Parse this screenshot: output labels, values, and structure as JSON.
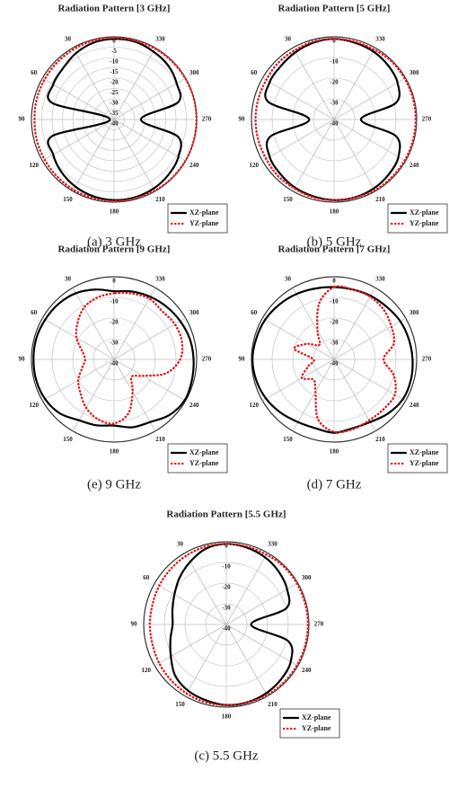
{
  "chart_data": [
    {
      "type": "polar",
      "title": "Radiation  Pattern [3 GHz]",
      "caption": "(a)  3  GHz",
      "theta": [
        0,
        15,
        30,
        45,
        60,
        75,
        90,
        105,
        120,
        135,
        150,
        165,
        180,
        195,
        210,
        225,
        240,
        255,
        270,
        285,
        300,
        315,
        330,
        345
      ],
      "rlim": [
        -40,
        0
      ],
      "rticks": [
        0,
        -5,
        -10,
        -15,
        -20,
        -25,
        -30,
        -35,
        -40
      ],
      "angle_ticks": [
        30,
        60,
        90,
        120,
        150,
        180,
        210,
        240,
        270,
        300,
        330
      ],
      "legend": "lower right",
      "series": [
        {
          "name": "XZ-plane",
          "color": "#000000",
          "style": "solid",
          "values": [
            -1,
            -1.5,
            -3,
            -5,
            -6,
            -9,
            -38,
            -9,
            -6,
            -4,
            -2.5,
            -1.5,
            -1,
            -1,
            -1.5,
            -2.5,
            -4,
            -8,
            -27,
            -8,
            -5,
            -3,
            -2,
            -1
          ]
        },
        {
          "name": "YZ-plane",
          "color": "#e31a1c",
          "style": "dotted",
          "values": [
            -0.5,
            -0.5,
            -0.8,
            -1,
            -1.2,
            -1.3,
            -1.5,
            -1.3,
            -1.2,
            -1,
            -0.8,
            -0.6,
            -0.5,
            -0.5,
            -0.3,
            -0.2,
            -0.1,
            -0.1,
            -0.1,
            -0.1,
            -0.2,
            -0.3,
            -0.4,
            -0.5
          ]
        }
      ]
    },
    {
      "type": "polar",
      "title": "Radiation  Pattern [5 GHz]",
      "caption": "(b)  5  GHz",
      "theta": [
        0,
        15,
        30,
        45,
        60,
        75,
        90,
        105,
        120,
        135,
        150,
        165,
        180,
        195,
        210,
        225,
        240,
        255,
        270,
        285,
        300,
        315,
        330,
        345
      ],
      "rlim": [
        -40,
        0
      ],
      "rticks": [
        0,
        -10,
        -20,
        -30,
        -40
      ],
      "angle_ticks": [
        30,
        60,
        90,
        120,
        150,
        180,
        210,
        240,
        270,
        300,
        330
      ],
      "legend": "lower right",
      "series": [
        {
          "name": "XZ-plane",
          "color": "#000000",
          "style": "solid",
          "values": [
            -1,
            -1.5,
            -2.5,
            -3.5,
            -4,
            -7,
            -28,
            -8,
            -4,
            -3,
            -2,
            -1.5,
            -1,
            -1,
            -1.5,
            -2.5,
            -4,
            -9,
            -27,
            -9,
            -4.5,
            -3,
            -2,
            -1.5
          ]
        },
        {
          "name": "YZ-plane",
          "color": "#e31a1c",
          "style": "dotted",
          "values": [
            -1,
            -1,
            -1.5,
            -1.5,
            -2,
            -2,
            -2,
            -2,
            -2,
            -1.5,
            -1.5,
            -1,
            -1,
            -1,
            -0.5,
            -0.5,
            -0.5,
            -0.5,
            -0.5,
            -0.5,
            -0.5,
            -0.5,
            -1,
            -1
          ]
        }
      ]
    },
    {
      "type": "polar",
      "title": "Radiation  Pattern [9 GHz]",
      "caption": "(e)  9  GHz",
      "theta": [
        0,
        15,
        30,
        45,
        60,
        75,
        90,
        105,
        120,
        135,
        150,
        165,
        180,
        195,
        210,
        225,
        240,
        255,
        270,
        285,
        300,
        315,
        330,
        345
      ],
      "rlim": [
        -40,
        0
      ],
      "rticks": [
        0,
        -10,
        -20,
        -30,
        -40
      ],
      "angle_ticks": [
        30,
        60,
        90,
        120,
        150,
        180,
        210,
        240,
        270,
        300,
        330
      ],
      "legend": "lower right",
      "series": [
        {
          "name": "XZ-plane",
          "color": "#000000",
          "style": "solid",
          "values": [
            -7,
            -5,
            -3,
            -2,
            -1.5,
            -1,
            -1,
            -1,
            -1.5,
            -3,
            -6,
            -7,
            -8,
            -6,
            -5,
            -2,
            -0.5,
            -1,
            -1.5,
            -2,
            -3,
            -4,
            -5,
            -6
          ]
        },
        {
          "name": "YZ-plane",
          "color": "#e31a1c",
          "style": "dotted",
          "values": [
            -8,
            -9,
            -11,
            -15,
            -19,
            -24,
            -26,
            -24,
            -20,
            -17,
            -13,
            -10,
            -9,
            -13,
            -22,
            -28,
            -24,
            -14,
            -8,
            -6,
            -6,
            -7,
            -6,
            -7
          ]
        }
      ]
    },
    {
      "type": "polar",
      "title": "Radiation  Pattern [7 GHz]",
      "caption": "(d)  7  GHz",
      "theta": [
        0,
        15,
        30,
        45,
        60,
        75,
        90,
        105,
        120,
        135,
        150,
        165,
        180,
        195,
        210,
        225,
        240,
        255,
        270,
        285,
        300,
        315,
        330,
        345
      ],
      "rlim": [
        -40,
        0
      ],
      "rticks": [
        0,
        -10,
        -20,
        -30,
        -40
      ],
      "angle_ticks": [
        30,
        60,
        90,
        120,
        150,
        180,
        210,
        240,
        270,
        300,
        330
      ],
      "legend": "lower right",
      "series": [
        {
          "name": "XZ-plane",
          "color": "#000000",
          "style": "solid",
          "values": [
            -5,
            -4.5,
            -3.5,
            -2.5,
            -1.5,
            -1,
            -0.5,
            -1,
            -2,
            -3.5,
            -5,
            -5.5,
            -4.5,
            -5.5,
            -5,
            -3,
            -1.5,
            -1.5,
            -2,
            -2.5,
            -3,
            -4,
            -4.5,
            -5
          ]
        },
        {
          "name": "YZ-plane",
          "color": "#e31a1c",
          "style": "dotted",
          "values": [
            -5,
            -12,
            -24,
            -30,
            -25,
            -20,
            -30,
            -27,
            -22,
            -26,
            -22,
            -10,
            -5,
            -5,
            -6,
            -6,
            -6,
            -10,
            -16,
            -10,
            -8,
            -6,
            -5,
            -5
          ]
        }
      ]
    },
    {
      "type": "polar",
      "title": "Radiation  Pattern [5.5 GHz]",
      "caption": "(c)  5.5  GHz",
      "theta": [
        0,
        15,
        30,
        45,
        60,
        75,
        90,
        105,
        120,
        135,
        150,
        165,
        180,
        195,
        210,
        225,
        240,
        255,
        270,
        285,
        300,
        315,
        330,
        345
      ],
      "rlim": [
        -40,
        0
      ],
      "rticks": [
        0,
        -10,
        -20,
        -30,
        -40
      ],
      "angle_ticks": [
        30,
        60,
        90,
        120,
        150,
        180,
        210,
        240,
        270,
        300,
        330
      ],
      "legend": "lower right",
      "series": [
        {
          "name": "XZ-plane",
          "color": "#000000",
          "style": "solid",
          "values": [
            -1,
            -2,
            -5,
            -8,
            -11,
            -13,
            -14,
            -12,
            -9,
            -5,
            -3,
            -2,
            -1,
            -1,
            -1.5,
            -2.5,
            -4,
            -9,
            -28,
            -10,
            -6,
            -4,
            -2.5,
            -1.5
          ]
        },
        {
          "name": "YZ-plane",
          "color": "#e31a1c",
          "style": "dotted",
          "values": [
            -1,
            -1,
            -1.5,
            -2,
            -2.5,
            -3,
            -3,
            -3,
            -2.5,
            -2,
            -1.5,
            -1,
            -1,
            -1,
            -0.5,
            -0.5,
            -0.5,
            -0.5,
            -0.5,
            -0.5,
            -0.5,
            -0.5,
            -1,
            -1
          ]
        }
      ]
    }
  ]
}
